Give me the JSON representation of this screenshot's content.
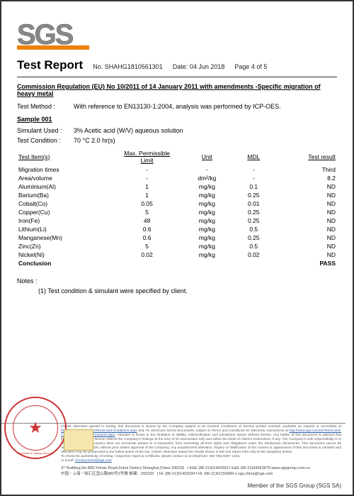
{
  "logo_text": "SGS",
  "header": {
    "title": "Test Report",
    "no_label": "No.",
    "no_value": "SHAHG1810561301",
    "date_label": "Date:",
    "date_value": "04 Jun 2018",
    "page_label": "Page",
    "page_value": "4 of 5"
  },
  "regulation_title": "Commission Regulation (EU) No 10/2011 of 14 January 2011 with amendments -Specific migration of heavy metal",
  "method_label": "Test Method :",
  "method_value": "With reference to EN13130-1:2004, analysis was performed by ICP-OES.",
  "sample_heading": "Sample 001",
  "simulant_label": "Simulant Used :",
  "simulant_value": "3% Acetic acid (W/V) aqueous solution",
  "condition_label": "Test Condition :",
  "condition_value": "70 °C  2.0 hr(s)",
  "table": {
    "headers": {
      "item": "Test Item(s)",
      "limit1": "Max. Permissible",
      "limit2": "Limit",
      "unit": "Unit",
      "mdl": "MDL",
      "result": "Test result"
    },
    "rows": [
      {
        "item": "Migration times",
        "limit": "-",
        "unit": "-",
        "mdl": "-",
        "result": "Third"
      },
      {
        "item": "Area/volume",
        "limit": "-",
        "unit": "dm²/kg",
        "mdl": "-",
        "result": "8.2"
      },
      {
        "item": "Aluminium(Al)",
        "limit": "1",
        "unit": "mg/kg",
        "mdl": "0.1",
        "result": "ND"
      },
      {
        "item": "Barium(Ba)",
        "limit": "1",
        "unit": "mg/kg",
        "mdl": "0.25",
        "result": "ND"
      },
      {
        "item": "Cobalt(Co)",
        "limit": "0.05",
        "unit": "mg/kg",
        "mdl": "0.01",
        "result": "ND"
      },
      {
        "item": "Copper(Cu)",
        "limit": "5",
        "unit": "mg/kg",
        "mdl": "0.25",
        "result": "ND"
      },
      {
        "item": "Iron(Fe)",
        "limit": "48",
        "unit": "mg/kg",
        "mdl": "0.25",
        "result": "ND"
      },
      {
        "item": "Lithium(Li)",
        "limit": "0.6",
        "unit": "mg/kg",
        "mdl": "0.5",
        "result": "ND"
      },
      {
        "item": "Manganese(Mn)",
        "limit": "0.6",
        "unit": "mg/kg",
        "mdl": "0.25",
        "result": "ND"
      },
      {
        "item": "Zinc(Zn)",
        "limit": "5",
        "unit": "mg/kg",
        "mdl": "0.5",
        "result": "ND"
      },
      {
        "item": "Nickel(Ni)",
        "limit": "0.02",
        "unit": "mg/kg",
        "mdl": "0.02",
        "result": "ND"
      }
    ],
    "conclusion_label": "Conclusion",
    "conclusion_result": "PASS"
  },
  "notes_label": "Notes :",
  "notes_1": "(1) Test condition & simulant were specified by client.",
  "footer": {
    "disclaimer_1": "Unless otherwise agreed in writing, this document is issued by the Company subject to its General Conditions of Service printed overleaf, available on request or accessible at ",
    "link1": "http://www.sgs.com/en/Terms-and-Conditions.aspx",
    "disclaimer_2": " and, for electronic format documents, subject to Terms and Conditions for Electronic Documents at ",
    "link2": "http://www.sgs.com/en/Terms-and-Conditions/Terms-e-Document.aspx",
    "disclaimer_3": ". Attention is drawn to the limitation of liability, indemnification and jurisdiction issues defined therein. Any holder of this document is advised that information contained hereon reflects the Company's findings at the time of its intervention only and within the limits of Client's instructions, if any. The Company's sole responsibility is to its Client and this document does not exonerate parties to a transaction from exercising all their rights and obligations under the transaction documents. This document cannot be reproduced except in full, without prior written approval of the Company. Any unauthorized alteration, forgery or falsification of the content or appearance of this document is unlawful and offenders may be prosecuted to the fullest extent of the law. Unless otherwise stated the results shown in this test report refer only to the sample(s) tested.",
    "disclaimer_4": "To check the authenticity of testing / inspection report & certificate, please contact us at telephone: (86-755) 8307 1443,",
    "email_label": "or email: ",
    "email": "CN.Doccheck@sgs.com",
    "addr1": "3ʳᵈ Building,No.889,Yishan Road,Xuhui District,Shanghai,China   200233",
    "addr1_tel": "t E&E (86-21)61402553   f E&E (86-21)64953679   www.sgsgroup.com.cn",
    "addr2": "中国・上海・徐汇区宜山路889号3号楼   邮编：200233",
    "addr2_tel": "t HL (86-21)61402594   f HL (86-21)61156899   e sgs.china@sgs.com",
    "member_text": "Member of the SGS Group (SGS SA)"
  },
  "stamp": {
    "center_glyph": "★",
    "bottom_text": "Inspection & Testing Services"
  }
}
